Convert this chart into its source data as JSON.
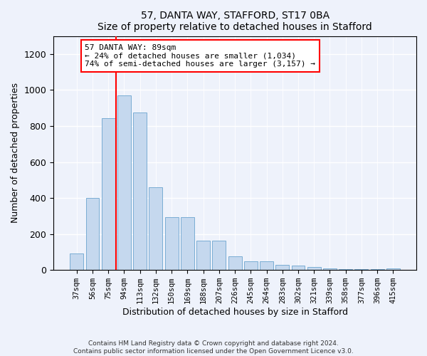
{
  "title1": "57, DANTA WAY, STAFFORD, ST17 0BA",
  "title2": "Size of property relative to detached houses in Stafford",
  "xlabel": "Distribution of detached houses by size in Stafford",
  "ylabel": "Number of detached properties",
  "categories": [
    "37sqm",
    "56sqm",
    "75sqm",
    "94sqm",
    "113sqm",
    "132sqm",
    "150sqm",
    "169sqm",
    "188sqm",
    "207sqm",
    "226sqm",
    "245sqm",
    "264sqm",
    "283sqm",
    "302sqm",
    "321sqm",
    "339sqm",
    "358sqm",
    "377sqm",
    "396sqm",
    "415sqm"
  ],
  "values": [
    90,
    400,
    845,
    970,
    875,
    460,
    295,
    295,
    165,
    165,
    75,
    50,
    48,
    30,
    25,
    18,
    10,
    5,
    5,
    5,
    10
  ],
  "bar_color": "#c5d8ee",
  "bar_edge_color": "#7aadd4",
  "vline_pos": 2.5,
  "vline_color": "red",
  "annotation_text": "57 DANTA WAY: 89sqm\n← 24% of detached houses are smaller (1,034)\n74% of semi-detached houses are larger (3,157) →",
  "annotation_box_color": "white",
  "annotation_box_edge": "red",
  "ylim": [
    0,
    1300
  ],
  "yticks": [
    0,
    200,
    400,
    600,
    800,
    1000,
    1200
  ],
  "footer": "Contains HM Land Registry data © Crown copyright and database right 2024.\nContains public sector information licensed under the Open Government Licence v3.0.",
  "bg_color": "#eef2fb",
  "grid_color": "white"
}
